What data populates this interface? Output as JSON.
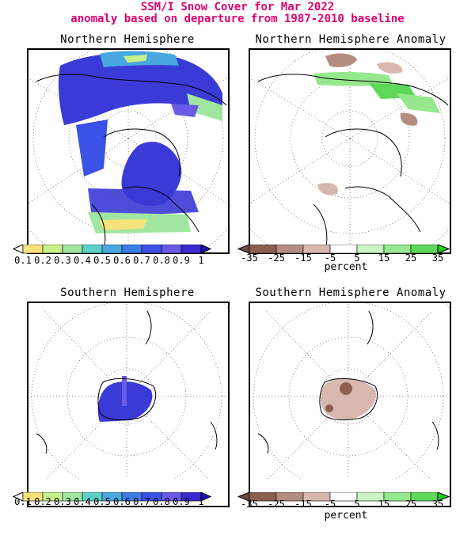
{
  "title": {
    "line1": "SSM/I Snow Cover for Mar 2022",
    "line2": "anomaly based on departure from 1987-2010 baseline"
  },
  "panels": {
    "nh": "Northern Hemisphere",
    "nh_anomaly": "Northern Hemisphere Anomaly",
    "sh": "Southern Hemisphere",
    "sh_anomaly": "Southern Hemisphere Anomaly"
  },
  "cover_scale": {
    "ticks": [
      "0.1",
      "0.2",
      "0.3",
      "0.4",
      "0.5",
      "0.6",
      "0.7",
      "0.8",
      "0.9",
      "1"
    ],
    "colors": [
      "#ffffff",
      "#f5e27a",
      "#c8f08c",
      "#a0e6a0",
      "#5ad0c8",
      "#4aa8e0",
      "#3c7ce6",
      "#3a52e6",
      "#6a5ae6",
      "#3a2ad0",
      "#1e14b4"
    ]
  },
  "anomaly_scale": {
    "ticks": [
      "-35",
      "-25",
      "-15",
      "-5",
      "5",
      "15",
      "25",
      "35"
    ],
    "unit": "percent",
    "colors": [
      "#6b4a3c",
      "#8c5e50",
      "#b48c80",
      "#d8b8ae",
      "#ffffff",
      "#c8f5c0",
      "#96e88c",
      "#5ed85a",
      "#26c826"
    ]
  }
}
